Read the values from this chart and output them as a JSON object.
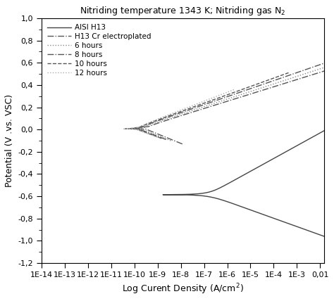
{
  "title": "Nitriding temperature 1343 K; Nitriding gas N$_2$",
  "xlabel": "Log Curent Density (A/cm$^2$)",
  "ylabel": "Potential (V .vs. VSC)",
  "ylim": [
    -1.2,
    1.0
  ],
  "yticks": [
    -1.2,
    -1.0,
    -0.8,
    -0.6,
    -0.4,
    -0.2,
    0.0,
    0.2,
    0.4,
    0.6,
    0.8,
    1.0
  ],
  "xtick_labels": [
    "1E-14",
    "1E-13",
    "1E-12",
    "1E-11",
    "1E-10",
    "1E-9",
    "1E-8",
    "1E-7",
    "1E-6",
    "1E-5",
    "1E-4",
    "1E-3",
    "0,01"
  ],
  "xtick_vals": [
    1e-14,
    1e-13,
    1e-12,
    1e-11,
    1e-10,
    1e-09,
    1e-08,
    1e-07,
    1e-06,
    1e-05,
    0.0001,
    0.001,
    0.01
  ],
  "legend_labels": [
    "AISI H13",
    "H13 Cr electroplated",
    "6 hours",
    "8 hours",
    "10 hours",
    "12 hours"
  ],
  "line_styles": [
    "-",
    "-.",
    ":",
    "-.",
    "--",
    ":"
  ],
  "line_colors": [
    "#444444",
    "#555555",
    "#888888",
    "#555555",
    "#555555",
    "#aaaaaa"
  ],
  "line_widths": [
    1.0,
    1.0,
    1.0,
    1.0,
    1.0,
    1.0
  ],
  "bg_color": "#ffffff"
}
